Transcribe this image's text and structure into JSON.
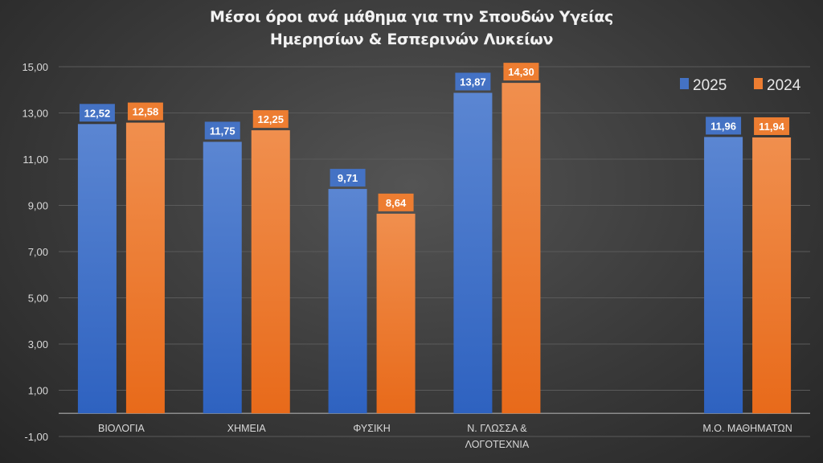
{
  "chart_data": {
    "type": "bar",
    "title": [
      "Μέσοι όροι ανά μάθημα για την Σπουδών Υγείας",
      "Ημερησίων & Εσπερινών Λυκείων"
    ],
    "categories": [
      "ΒΙΟΛΟΓΙΑ",
      "ΧΗΜΕΙΑ",
      "ΦΥΣΙΚΗ",
      "Ν. ΓΛΩΣΣΑ & ΛΟΓΟΤΕΧΝΙΑ",
      "",
      "Μ.Ο. ΜΑΘΗΜΑΤΩΝ"
    ],
    "category_lines": [
      [
        "ΒΙΟΛΟΓΙΑ"
      ],
      [
        "ΧΗΜΕΙΑ"
      ],
      [
        "ΦΥΣΙΚΗ"
      ],
      [
        "Ν. ΓΛΩΣΣΑ &",
        "ΛΟΓΟΤΕΧΝΙΑ"
      ],
      [],
      [
        "Μ.Ο. ΜΑΘΗΜΑΤΩΝ"
      ]
    ],
    "series": [
      {
        "name": "2025",
        "color": "#4472c4",
        "values": [
          12.52,
          11.75,
          9.71,
          13.87,
          null,
          11.96
        ],
        "labels": [
          "12,52",
          "11,75",
          "9,71",
          "13,87",
          "",
          "11,96"
        ]
      },
      {
        "name": "2024",
        "color": "#ed7d31",
        "values": [
          12.58,
          12.25,
          8.64,
          14.3,
          null,
          11.94
        ],
        "labels": [
          "12,58",
          "12,25",
          "8,64",
          "14,30",
          "",
          "11,94"
        ]
      }
    ],
    "ylim": [
      -1,
      15
    ],
    "yticks": [
      -1,
      1,
      3,
      5,
      7,
      9,
      11,
      13,
      15
    ],
    "ytick_labels": [
      "-1,00",
      "1,00",
      "3,00",
      "5,00",
      "7,00",
      "9,00",
      "11,00",
      "13,00",
      "15,00"
    ],
    "grid": true,
    "legend": "top-right",
    "xlabel": "",
    "ylabel": ""
  }
}
